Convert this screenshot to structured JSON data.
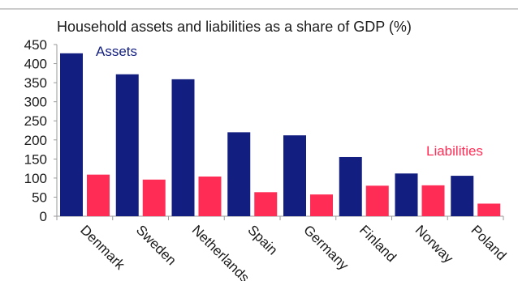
{
  "chart_data": {
    "type": "bar",
    "title": "Household assets and liabilities as a share of GDP (%)",
    "xlabel": "",
    "ylabel": "",
    "categories": [
      "Denmark",
      "Sweden",
      "Netherlands",
      "Spain",
      "Germany",
      "Finland",
      "Norway",
      "Poland"
    ],
    "series": [
      {
        "name": "Assets",
        "values": [
          427,
          372,
          359,
          220,
          212,
          155,
          112,
          106
        ],
        "color": "#131f80"
      },
      {
        "name": "Liabilities",
        "values": [
          109,
          96,
          104,
          63,
          57,
          80,
          81,
          33
        ],
        "color": "#ff2d55"
      }
    ],
    "ylim": [
      0,
      450
    ],
    "yticks": [
      0,
      50,
      100,
      150,
      200,
      250,
      300,
      350,
      400,
      450
    ],
    "grid": false,
    "legend": "inline"
  }
}
